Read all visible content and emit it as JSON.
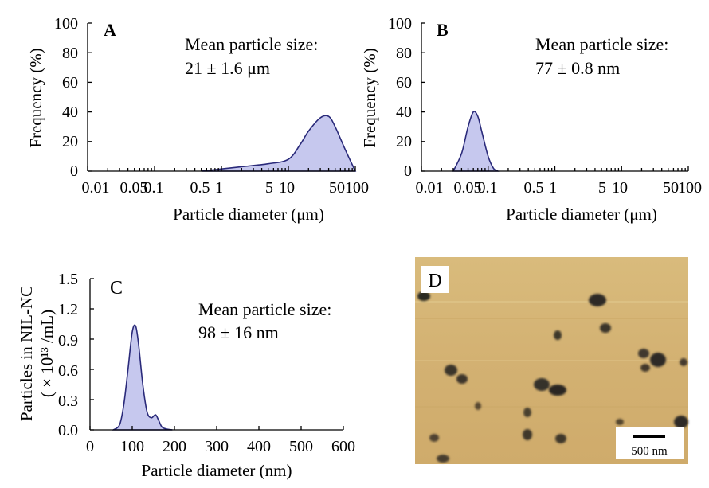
{
  "chart_data": [
    {
      "id": "A",
      "type": "area",
      "panel_label": "A",
      "xscale": "log",
      "xlim": [
        0.01,
        100
      ],
      "ylim": [
        0,
        100
      ],
      "xlabel": "Particle diameter (μm)",
      "ylabel": "Frequency (%)",
      "yticks": [
        "0",
        "20",
        "40",
        "60",
        "80",
        "100"
      ],
      "xticks": [
        "0.01",
        "0.05",
        "0.1",
        "0.5",
        "1",
        "5",
        "10",
        "50",
        "100"
      ],
      "annotation": [
        "Mean particle size:",
        "21 ± 1.6 μm"
      ],
      "x": [
        0.5,
        1,
        2,
        5,
        10,
        15,
        20,
        30,
        40,
        50,
        70,
        100
      ],
      "values": [
        0,
        1.5,
        3,
        5,
        8,
        18,
        27,
        36,
        37,
        30,
        15,
        0
      ]
    },
    {
      "id": "B",
      "type": "area",
      "panel_label": "B",
      "xscale": "log",
      "xlim": [
        0.01,
        100
      ],
      "ylim": [
        0,
        100
      ],
      "xlabel": "Particle diameter (μm)",
      "ylabel": "Frequency (%)",
      "yticks": [
        "0",
        "20",
        "40",
        "60",
        "80",
        "100"
      ],
      "xticks": [
        "0.01",
        "0.05",
        "0.1",
        "0.5",
        "1",
        "5",
        "10",
        "50",
        "100"
      ],
      "annotation": [
        "Mean particle size:",
        "77 ± 0.8 nm"
      ],
      "x": [
        0.03,
        0.04,
        0.05,
        0.06,
        0.07,
        0.08,
        0.1,
        0.12,
        0.14
      ],
      "values": [
        0,
        12,
        30,
        40,
        37,
        27,
        10,
        2,
        0
      ]
    },
    {
      "id": "C",
      "type": "area",
      "panel_label": "C",
      "xscale": "linear",
      "xlim": [
        0,
        600
      ],
      "ylim": [
        0,
        1.5
      ],
      "xlabel": "Particle diameter (nm)",
      "ylabel": [
        "Particles in NIL-NC",
        "( × 10¹³ /mL)"
      ],
      "yticks": [
        "0.0",
        "0.3",
        "0.6",
        "0.9",
        "1.2",
        "1.5"
      ],
      "xticks": [
        "0",
        "100",
        "200",
        "300",
        "400",
        "500",
        "600"
      ],
      "annotation": [
        "Mean particle size:",
        "98 ± 16 nm"
      ],
      "x": [
        55,
        70,
        80,
        90,
        100,
        108,
        115,
        125,
        135,
        145,
        155,
        162,
        170,
        180,
        195
      ],
      "values": [
        0,
        0.05,
        0.25,
        0.6,
        0.97,
        1.03,
        0.85,
        0.45,
        0.18,
        0.12,
        0.15,
        0.1,
        0.03,
        0.01,
        0
      ]
    }
  ],
  "image_panel": {
    "panel_label": "D",
    "scale_bar": "500 nm",
    "background_color": "#d3b172"
  }
}
